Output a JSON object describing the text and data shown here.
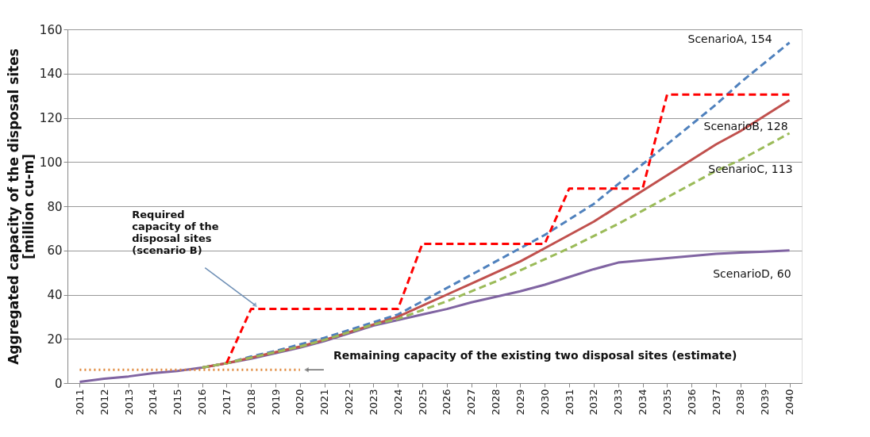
{
  "chart_data": {
    "type": "line",
    "ylabel": "Aggregated capacity of the disposal sites\n[million cu-m]",
    "categories": [
      "2011",
      "2012",
      "2013",
      "2014",
      "2015",
      "2016",
      "2017",
      "2018",
      "2019",
      "2020",
      "2021",
      "2022",
      "2023",
      "2024",
      "2025",
      "2026",
      "2027",
      "2028",
      "2029",
      "2030",
      "2031",
      "2032",
      "2033",
      "2034",
      "2035",
      "2036",
      "2037",
      "2038",
      "2039",
      "2040"
    ],
    "series": [
      {
        "color": "#8064a2",
        "line_style": "solid",
        "values": [
          0.5,
          2,
          3,
          4.5,
          5.5,
          7,
          9,
          11,
          13.5,
          16,
          19,
          22.5,
          26,
          28.5,
          31,
          33.5,
          36.5,
          39,
          41.5,
          44.5,
          48,
          51.5,
          54.5,
          55.5,
          56.5,
          57.5,
          58.5,
          59,
          59.5,
          60
        ]
      },
      {
        "color": "#4f81bd",
        "line_style": "dashed",
        "values": [
          null,
          null,
          null,
          null,
          null,
          7,
          9,
          12,
          14.5,
          17.5,
          20.5,
          24,
          27.5,
          31,
          37,
          43,
          49,
          55,
          61,
          67,
          74,
          81,
          90,
          99,
          108,
          117,
          126,
          136,
          145,
          154
        ]
      },
      {
        "color": "#c0504d",
        "line_style": "solid",
        "values": [
          null,
          null,
          null,
          null,
          null,
          7,
          9,
          11.5,
          14,
          16.5,
          19.5,
          23,
          26.5,
          30,
          35,
          40,
          45,
          50,
          55,
          61,
          67,
          73,
          80,
          87,
          94,
          101,
          108,
          114,
          121,
          128
        ]
      },
      {
        "color": "#9bbb59",
        "line_style": "dashed",
        "values": [
          null,
          null,
          null,
          null,
          null,
          7,
          9,
          11.5,
          14,
          16.5,
          19.5,
          23,
          26.5,
          29,
          33,
          37,
          41.5,
          46,
          51,
          56,
          61,
          66.5,
          72,
          78,
          84,
          90,
          96,
          101,
          107,
          113
        ]
      },
      {
        "color": "#ff0000",
        "line_style": "dashed",
        "values": [
          null,
          null,
          null,
          null,
          null,
          null,
          9,
          33.5,
          33.5,
          33.5,
          33.5,
          33.5,
          33.5,
          33.5,
          63,
          63,
          63,
          63,
          63,
          63,
          88,
          88,
          88,
          88,
          130.5,
          130.5,
          130.5,
          130.5,
          130.5,
          130.5
        ]
      },
      {
        "color": "#e0883b",
        "line_style": "dotted",
        "values": [
          6,
          6,
          6,
          6,
          6,
          6,
          6,
          6,
          6,
          6,
          null,
          null,
          null,
          null,
          null,
          null,
          null,
          null,
          null,
          null,
          null,
          null,
          null,
          null,
          null,
          null,
          null,
          null,
          null,
          null
        ]
      }
    ],
    "ylim": [
      0,
      160
    ],
    "yticks": [
      0,
      20,
      40,
      60,
      80,
      100,
      120,
      140,
      160
    ],
    "grid": "y",
    "annotations": [
      {
        "text": "ScenarioA, 154",
        "x": "2040",
        "y": 154
      },
      {
        "text": "ScenarioB, 128",
        "x": "2040",
        "y": 128
      },
      {
        "text": "ScenarioC, 113",
        "x": "2040",
        "y": 113
      },
      {
        "text": "ScenarioD, 60",
        "x": "2040",
        "y": 60
      },
      {
        "text": "Required\ncapacity of the\ndisposal sites\n(scenario B)",
        "x": "2018",
        "y": 33.5
      },
      {
        "text": "Remaining capacity of the existing two disposal sites (estimate)",
        "x": "2020",
        "y": 6
      }
    ]
  }
}
